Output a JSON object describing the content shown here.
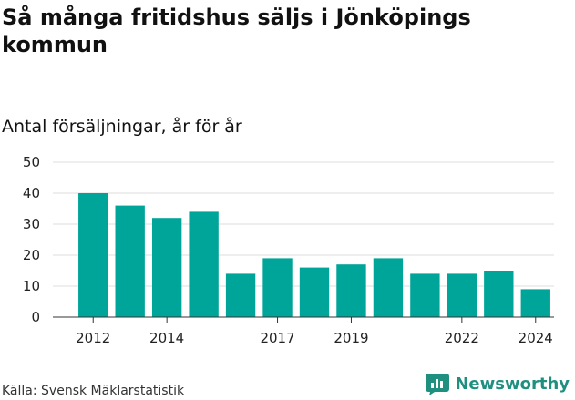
{
  "title": "Så många fritidshus säljs i Jönköpings kommun",
  "subtitle": "Antal försäljningar, år för år",
  "source": "Källa: Svensk Mäklarstatistik",
  "brand": {
    "name": "Newsworthy",
    "icon": "bar-chart-logo-icon",
    "color": "#1f8f7f"
  },
  "colors": {
    "bar": "#00a59a",
    "grid": "#dddddd",
    "axis": "#333333"
  },
  "chart_data": {
    "type": "bar",
    "x": [
      2012,
      2013,
      2014,
      2015,
      2016,
      2017,
      2018,
      2019,
      2020,
      2021,
      2022,
      2023,
      2024
    ],
    "values": [
      40,
      36,
      32,
      34,
      14,
      19,
      16,
      17,
      19,
      14,
      14,
      15,
      9
    ],
    "x_tick_labels": [
      "2012",
      "2014",
      "2017",
      "2019",
      "2022",
      "2024"
    ],
    "y_ticks": [
      0,
      10,
      20,
      30,
      40,
      50
    ],
    "ylim": [
      0,
      50
    ],
    "grid": true,
    "xlabel": "",
    "ylabel": ""
  }
}
